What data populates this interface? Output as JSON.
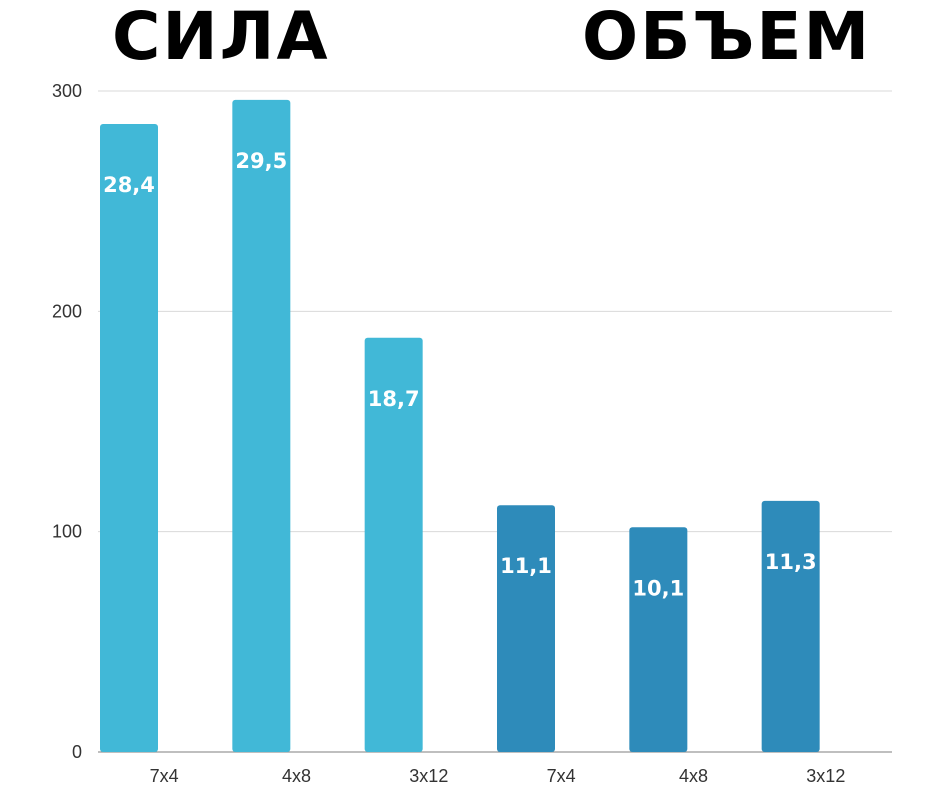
{
  "headings": {
    "left": "СИЛА",
    "right": "ОБЪЕМ"
  },
  "chart_data": {
    "type": "bar",
    "categories": [
      "7x4",
      "4x8",
      "3x12",
      "7x4",
      "4x8",
      "3x12"
    ],
    "values": [
      285,
      296,
      188,
      112,
      102,
      114
    ],
    "data_labels": [
      "28,4",
      "29,5",
      "18,7",
      "11,1",
      "10,1",
      "11,3"
    ],
    "groups": [
      {
        "name": "СИЛА",
        "indices": [
          0,
          1,
          2
        ],
        "color": "#41b8d7"
      },
      {
        "name": "ОБЪЕМ",
        "indices": [
          3,
          4,
          5
        ],
        "color": "#2e8bba"
      }
    ],
    "yticks": [
      "0",
      "100",
      "200",
      "300"
    ],
    "ylim": [
      0,
      300
    ],
    "grid": true,
    "title": "",
    "xlabel": "",
    "ylabel": ""
  }
}
